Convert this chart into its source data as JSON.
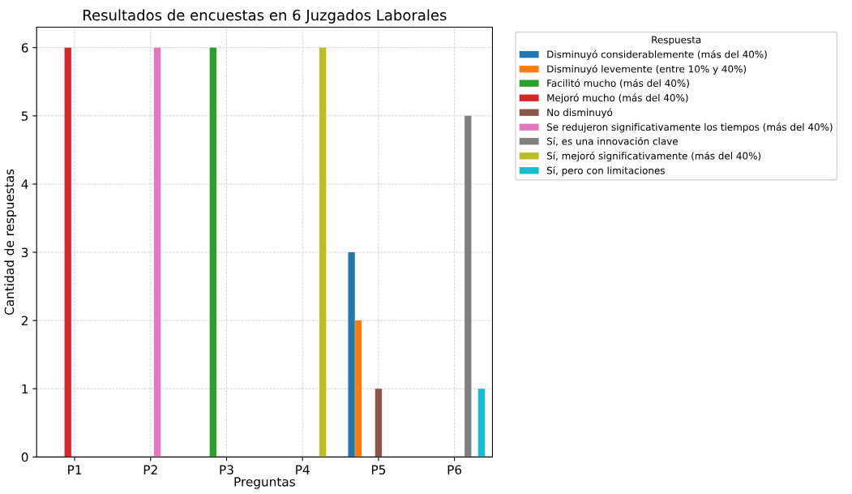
{
  "chart_data": {
    "type": "bar",
    "title": "Resultados de encuestas en 6 Juzgados Laborales",
    "xlabel": "Preguntas",
    "ylabel": "Cantidad de respuestas",
    "legend_title": "Respuesta",
    "categories": [
      "P1",
      "P2",
      "P3",
      "P4",
      "P5",
      "P6"
    ],
    "series": [
      {
        "name": "Disminuyó considerablemente (más del 40%)",
        "color": "#1f77b4",
        "values": [
          null,
          null,
          null,
          null,
          3,
          null
        ]
      },
      {
        "name": "Disminuyó levemente (entre 10% y 40%)",
        "color": "#ff7f0e",
        "values": [
          null,
          null,
          null,
          null,
          2,
          null
        ]
      },
      {
        "name": "Facilitó mucho (más del 40%)",
        "color": "#2ca02c",
        "values": [
          null,
          null,
          6,
          null,
          null,
          null
        ]
      },
      {
        "name": "Mejoró mucho (más del 40%)",
        "color": "#d62728",
        "values": [
          6,
          null,
          null,
          null,
          null,
          null
        ]
      },
      {
        "name": "No disminuyó",
        "color": "#8c564b",
        "values": [
          null,
          null,
          null,
          null,
          1,
          null
        ]
      },
      {
        "name": "Se redujeron significativamente los tiempos (más del 40%)",
        "color": "#e377c2",
        "values": [
          null,
          6,
          null,
          null,
          null,
          null
        ]
      },
      {
        "name": "Sí, es una innovación clave",
        "color": "#7f7f7f",
        "values": [
          null,
          null,
          null,
          null,
          null,
          5
        ]
      },
      {
        "name": "Sí, mejoró significativamente (más del 40%)",
        "color": "#bcbd22",
        "values": [
          null,
          null,
          null,
          6,
          null,
          null
        ]
      },
      {
        "name": "Sí, pero con limitaciones",
        "color": "#17becf",
        "values": [
          null,
          null,
          null,
          null,
          null,
          1
        ]
      }
    ],
    "ylim": [
      0,
      6.3
    ],
    "yticks": [
      0,
      1,
      2,
      3,
      4,
      5,
      6
    ],
    "grid": true,
    "legend": "top right"
  }
}
